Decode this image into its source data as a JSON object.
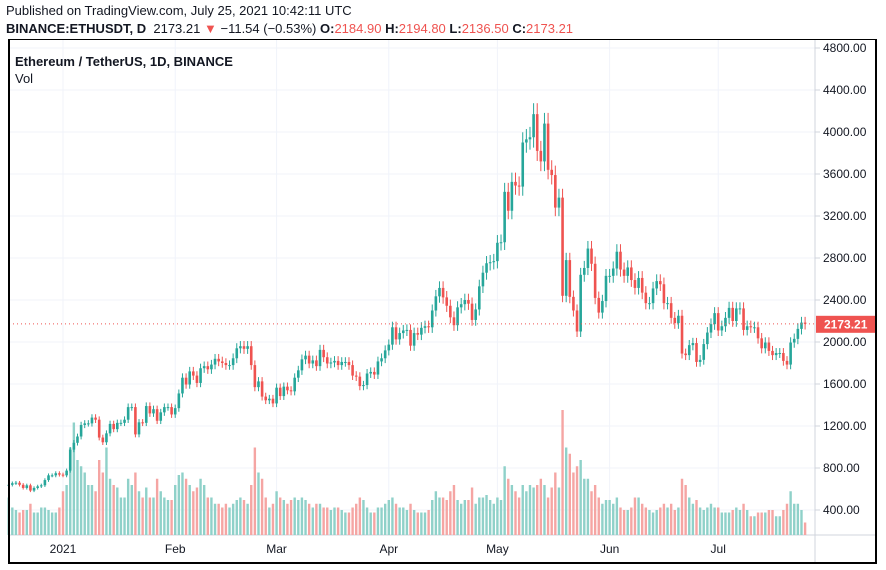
{
  "header": {
    "published": "Published on TradingView.com, July 25, 2021 10:42:11 UTC",
    "symbol": "BINANCE:ETHUSDT, D",
    "last": "2173.21",
    "change": "−11.54 (−0.53%)",
    "open_label": "O:",
    "open": "2184.90",
    "high_label": "H:",
    "high": "2194.80",
    "low_label": "L:",
    "low": "2136.50",
    "close_label": "C:",
    "close": "2173.21",
    "direction_icon": "triangle-down-icon"
  },
  "legend": {
    "title": "Ethereum / TetherUS, 1D, BINANCE",
    "indicator": "Vol"
  },
  "colors": {
    "up": "#26a69a",
    "down": "#ef5350",
    "up_vol": "#8fd1c9",
    "down_vol": "#f5a5a3",
    "grid": "#f0f3fa"
  },
  "chart_data": {
    "type": "candlestick",
    "title": "Ethereum / TetherUS, 1D, BINANCE",
    "ylim": [
      0,
      4800
    ],
    "y_ticks": [
      "400.00",
      "800.00",
      "1200.00",
      "1600.00",
      "2000.00",
      "2400.00",
      "2800.00",
      "3200.00",
      "3600.00",
      "4000.00",
      "4400.00",
      "4800.00"
    ],
    "x_ticks": [
      {
        "label": "2021",
        "date": "2021-01-01"
      },
      {
        "label": "Feb",
        "date": "2021-02-01"
      },
      {
        "label": "Mar",
        "date": "2021-03-01"
      },
      {
        "label": "Apr",
        "date": "2021-04-01"
      },
      {
        "label": "May",
        "date": "2021-05-01"
      },
      {
        "label": "Jun",
        "date": "2021-06-01"
      },
      {
        "label": "Jul",
        "date": "2021-07-01"
      }
    ],
    "last_price": 2173.21,
    "last_price_label": "2173.21",
    "grid": true,
    "months": [
      {
        "month": "2020-12",
        "first_day": 17,
        "close": [
          640,
          655,
          660,
          640,
          610,
          635,
          585,
          610,
          625,
          635,
          685,
          730,
          730,
          750,
          737
        ],
        "volume": [
          30,
          22,
          20,
          18,
          20,
          20,
          25,
          18,
          18,
          22,
          22,
          20,
          18,
          18,
          22
        ]
      },
      {
        "month": "2021-01",
        "first_day": 1,
        "close": [
          730,
          775,
          975,
          1040,
          1100,
          1210,
          1225,
          1225,
          1280,
          1260,
          1090,
          1045,
          1130,
          1220,
          1170,
          1230,
          1230,
          1260,
          1380,
          1380,
          1120,
          1235,
          1230,
          1390,
          1320,
          1360,
          1250,
          1330,
          1380,
          1380,
          1310
        ],
        "volume": [
          35,
          40,
          70,
          90,
          60,
          55,
          50,
          40,
          40,
          35,
          60,
          50,
          70,
          45,
          40,
          38,
          30,
          30,
          45,
          40,
          50,
          35,
          30,
          38,
          30,
          30,
          45,
          35,
          30,
          28,
          28
        ]
      },
      {
        "month": "2021-02",
        "first_day": 1,
        "close": [
          1370,
          1510,
          1660,
          1595,
          1720,
          1680,
          1610,
          1750,
          1770,
          1740,
          1785,
          1840,
          1815,
          1800,
          1780,
          1780,
          1845,
          1940,
          1960,
          1935,
          1960,
          1780,
          1570,
          1625,
          1480,
          1445,
          1460,
          1415
        ],
        "volume": [
          40,
          48,
          50,
          45,
          40,
          35,
          38,
          45,
          40,
          30,
          30,
          25,
          25,
          22,
          25,
          22,
          25,
          28,
          30,
          28,
          25,
          40,
          70,
          50,
          45,
          30,
          22,
          25
        ]
      },
      {
        "month": "2021-03",
        "first_day": 1,
        "close": [
          1565,
          1485,
          1575,
          1540,
          1530,
          1660,
          1730,
          1835,
          1870,
          1795,
          1825,
          1770,
          1925,
          1855,
          1795,
          1805,
          1820,
          1780,
          1810,
          1810,
          1780,
          1680,
          1670,
          1580,
          1590,
          1700,
          1715,
          1690,
          1815,
          1845,
          1920
        ],
        "volume": [
          35,
          30,
          28,
          25,
          28,
          30,
          28,
          30,
          28,
          25,
          22,
          25,
          25,
          22,
          22,
          20,
          22,
          22,
          20,
          18,
          18,
          22,
          25,
          30,
          28,
          22,
          18,
          18,
          22,
          22,
          25
        ]
      },
      {
        "month": "2021-04",
        "first_day": 1,
        "close": [
          1975,
          2140,
          2025,
          2085,
          2110,
          2115,
          1965,
          2085,
          2070,
          2135,
          2150,
          2140,
          2300,
          2435,
          2515,
          2425,
          2345,
          2235,
          2160,
          2330,
          2360,
          2400,
          2365,
          2210,
          2310,
          2530,
          2660,
          2750,
          2760,
          2770
        ],
        "volume": [
          28,
          30,
          25,
          22,
          22,
          20,
          25,
          20,
          18,
          18,
          18,
          20,
          28,
          35,
          30,
          30,
          28,
          35,
          40,
          28,
          25,
          28,
          28,
          38,
          25,
          30,
          30,
          32,
          28,
          25
        ]
      },
      {
        "month": "2021-05",
        "first_day": 1,
        "close": [
          2945,
          2950,
          3430,
          3250,
          3525,
          3490,
          3480,
          3900,
          3930,
          3950,
          4170,
          3820,
          3720,
          4080,
          3640,
          3590,
          3280,
          3375,
          2440,
          2780,
          2430,
          2300,
          2100,
          2640,
          2705,
          2890,
          2745,
          2420,
          2280,
          2390,
          2630
        ],
        "volume": [
          30,
          28,
          55,
          45,
          40,
          35,
          30,
          40,
          35,
          40,
          38,
          40,
          45,
          40,
          30,
          38,
          50,
          38,
          100,
          70,
          65,
          50,
          55,
          60,
          45,
          45,
          35,
          40,
          30,
          25,
          28
        ]
      },
      {
        "month": "2021-06",
        "first_day": 1,
        "close": [
          2630,
          2700,
          2860,
          2690,
          2630,
          2710,
          2590,
          2515,
          2610,
          2470,
          2370,
          2370,
          2510,
          2580,
          2550,
          2370,
          2370,
          2230,
          2180,
          2250,
          1890,
          1875,
          1970,
          1990,
          1810,
          1830,
          1980,
          2090,
          2170,
          2275
        ],
        "volume": [
          28,
          25,
          30,
          22,
          20,
          20,
          22,
          30,
          30,
          25,
          22,
          20,
          18,
          20,
          22,
          25,
          22,
          25,
          20,
          22,
          45,
          40,
          30,
          25,
          28,
          22,
          20,
          22,
          25,
          22
        ]
      },
      {
        "month": "2021-07",
        "first_day": 1,
        "close": [
          2110,
          2150,
          2230,
          2325,
          2200,
          2320,
          2320,
          2115,
          2150,
          2140,
          2140,
          2035,
          1940,
          1995,
          1915,
          1875,
          1895,
          1895,
          1820,
          1785,
          1995,
          2030,
          2125,
          2184.9,
          2173.21
        ],
        "volume": [
          22,
          18,
          18,
          18,
          20,
          22,
          20,
          25,
          20,
          15,
          15,
          18,
          18,
          18,
          20,
          20,
          15,
          15,
          20,
          25,
          35,
          25,
          25,
          20,
          10
        ]
      }
    ]
  }
}
